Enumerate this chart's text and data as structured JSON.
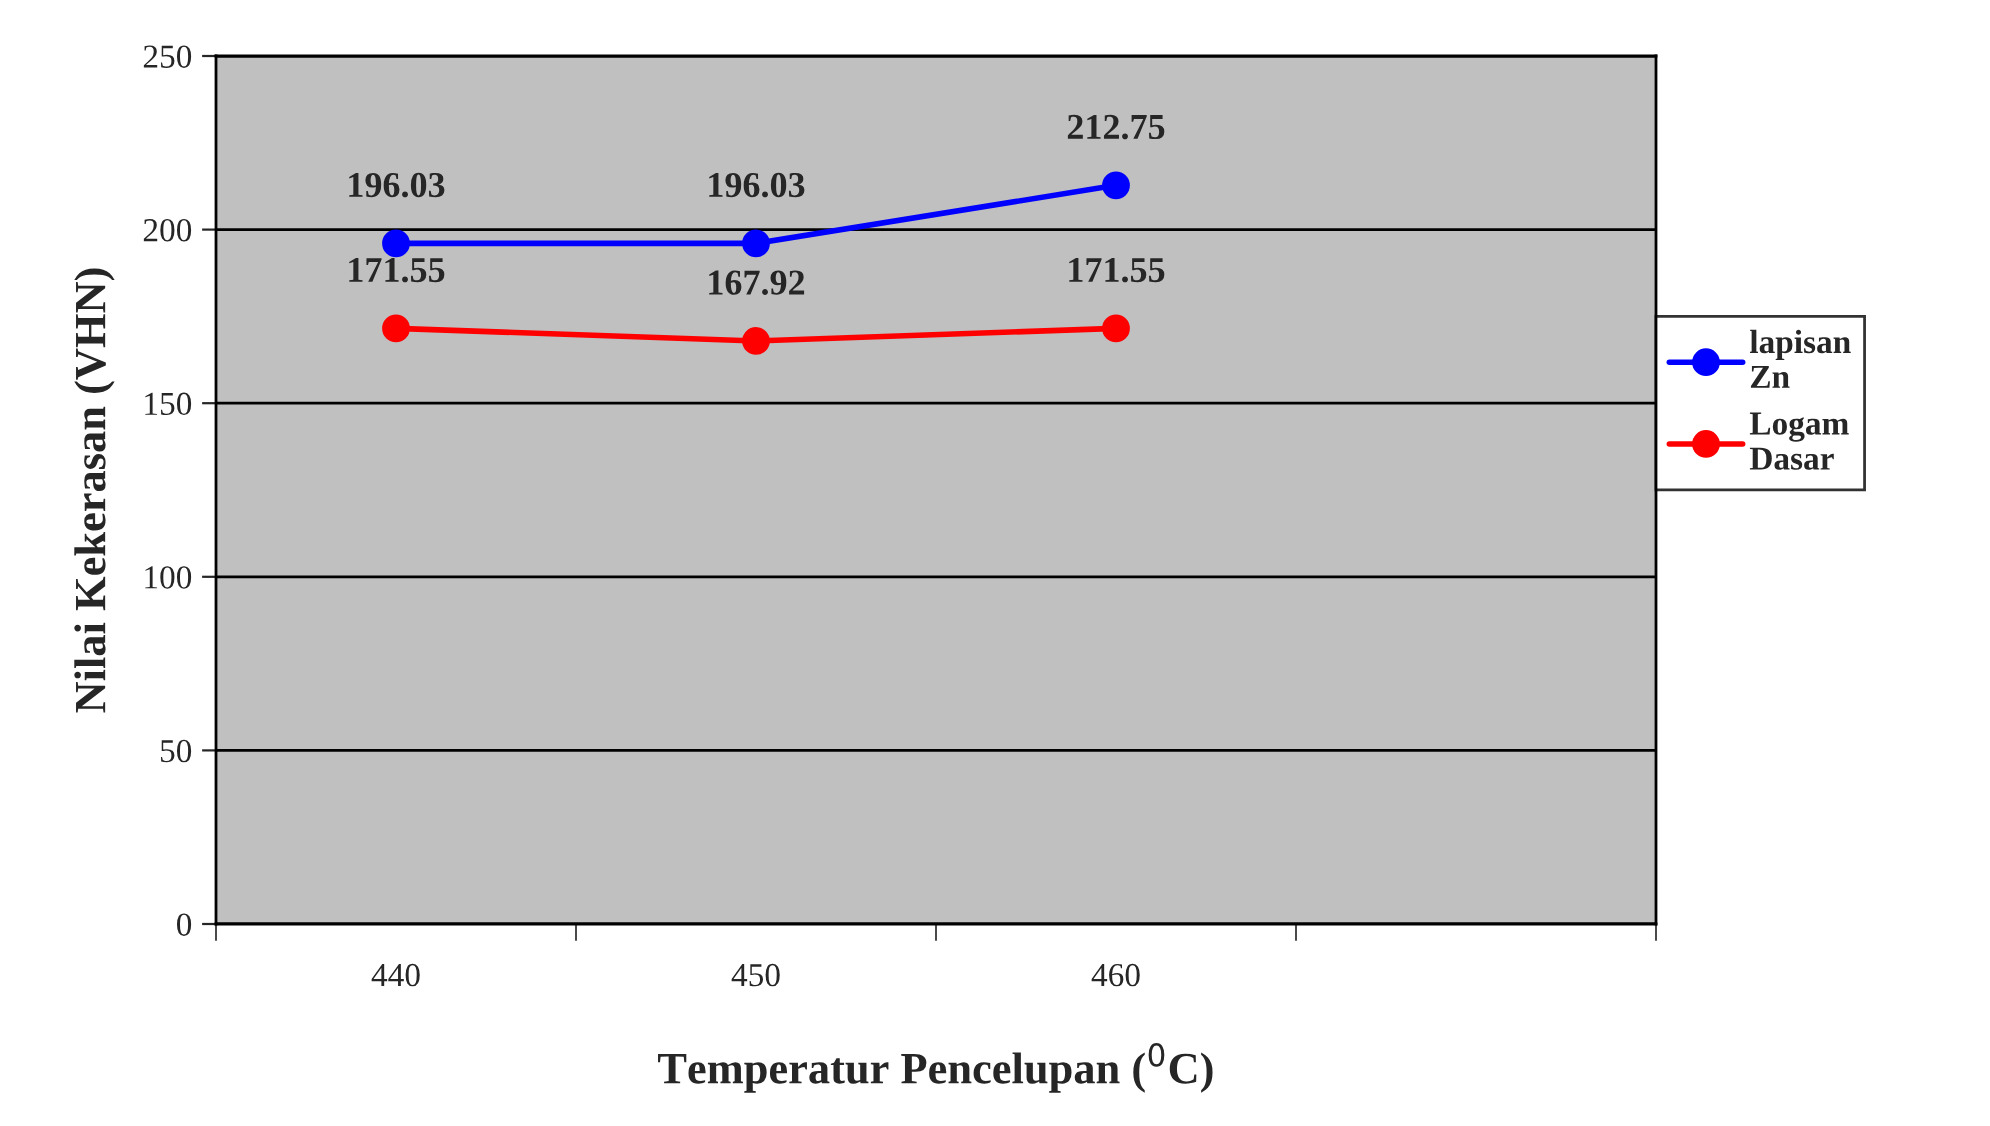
{
  "chart_data": {
    "type": "line",
    "xlabel": "Temperatur Pencelupan ($^{0}$C)",
    "ylabel": "Nilai Kekerasan (VHN)",
    "categories": [
      "440",
      "450",
      "460",
      null
    ],
    "series": [
      {
        "name": "lapisan Zn",
        "color": "#0000ff",
        "values": [
          196.03,
          196.03,
          212.75,
          null
        ]
      },
      {
        "name": "Logam Dasar",
        "color": "#ff0000",
        "values": [
          171.55,
          167.92,
          171.55,
          null
        ]
      }
    ],
    "ylim": [
      0,
      250
    ],
    "yticks": [
      0,
      50,
      100,
      150,
      200,
      250
    ],
    "grid": "y",
    "legend": "right",
    "marker": "circle",
    "line_style": "solid",
    "data_labels": true
  }
}
